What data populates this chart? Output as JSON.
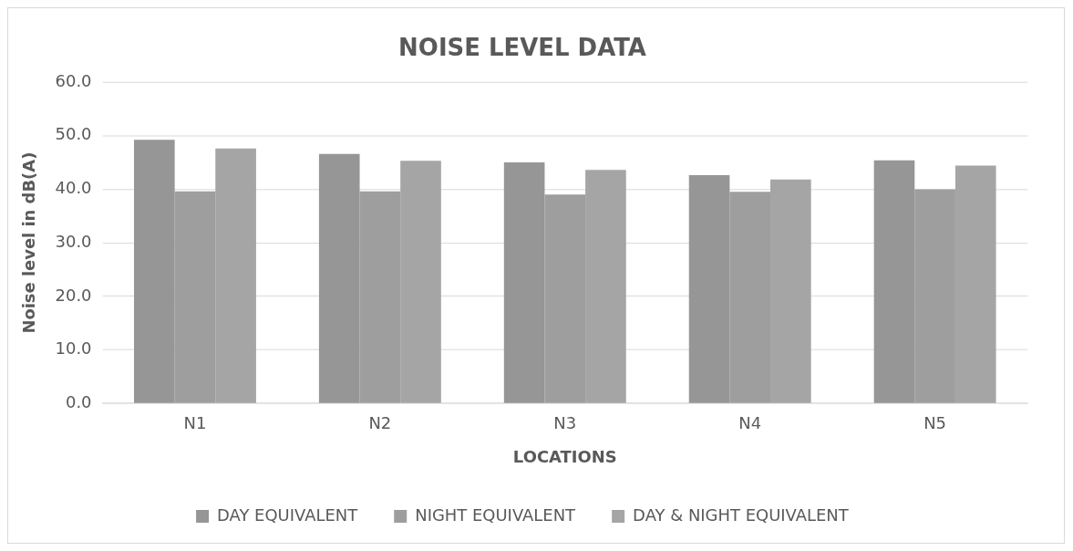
{
  "chart_data": {
    "type": "bar",
    "title": "NOISE LEVEL DATA",
    "xlabel": "LOCATIONS",
    "ylabel": "Noise level in dB(A)",
    "categories": [
      "N1",
      "N2",
      "N3",
      "N4",
      "N5"
    ],
    "series": [
      {
        "name": "DAY EQUIVALENT",
        "color": "#969696",
        "values": [
          49.2,
          46.6,
          45.0,
          42.6,
          45.4
        ]
      },
      {
        "name": "NIGHT EQUIVALENT",
        "color": "#9e9e9e",
        "values": [
          39.6,
          39.6,
          39.0,
          39.5,
          40.0
        ]
      },
      {
        "name": "DAY & NIGHT EQUIVALENT",
        "color": "#a5a5a5",
        "values": [
          47.6,
          45.3,
          43.6,
          41.8,
          44.4
        ]
      }
    ],
    "ylim": [
      0,
      60
    ],
    "yticks": [
      {
        "value": 0,
        "label": "0.0"
      },
      {
        "value": 10,
        "label": "10.0"
      },
      {
        "value": 20,
        "label": "20.0"
      },
      {
        "value": 30,
        "label": "30.0"
      },
      {
        "value": 40,
        "label": "40.0"
      },
      {
        "value": 50,
        "label": "50.0"
      },
      {
        "value": 60,
        "label": "60.0"
      }
    ],
    "grid": "y",
    "legend": "bottom"
  }
}
